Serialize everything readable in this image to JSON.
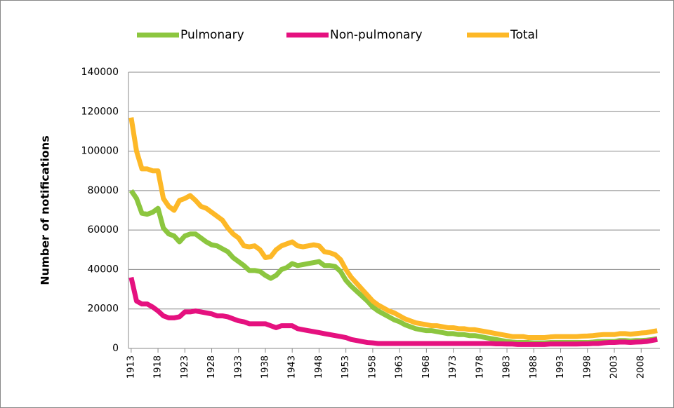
{
  "chart_data": {
    "type": "line",
    "y_label": "Number of notifications",
    "x": [
      1913,
      1914,
      1915,
      1916,
      1917,
      1918,
      1919,
      1920,
      1921,
      1922,
      1923,
      1924,
      1925,
      1926,
      1927,
      1928,
      1929,
      1930,
      1931,
      1932,
      1933,
      1934,
      1935,
      1936,
      1937,
      1938,
      1939,
      1940,
      1941,
      1942,
      1943,
      1944,
      1945,
      1946,
      1947,
      1948,
      1949,
      1950,
      1951,
      1952,
      1953,
      1954,
      1955,
      1956,
      1957,
      1958,
      1959,
      1960,
      1961,
      1962,
      1963,
      1964,
      1965,
      1966,
      1967,
      1968,
      1969,
      1970,
      1971,
      1972,
      1973,
      1974,
      1975,
      1976,
      1977,
      1978,
      1979,
      1980,
      1981,
      1982,
      1983,
      1984,
      1985,
      1986,
      1987,
      1988,
      1989,
      1990,
      1991,
      1992,
      1993,
      1994,
      1995,
      1996,
      1997,
      1998,
      1999,
      2000,
      2001,
      2002,
      2003,
      2004,
      2005,
      2006,
      2007,
      2008,
      2009,
      2010,
      2011
    ],
    "xlim": [
      1912.5,
      2011.5
    ],
    "xticks": [
      1913,
      1918,
      1923,
      1928,
      1933,
      1938,
      1943,
      1948,
      1953,
      1958,
      1963,
      1968,
      1973,
      1978,
      1983,
      1988,
      1993,
      1998,
      2003,
      2008
    ],
    "ylim": [
      0,
      140000
    ],
    "yticks": [
      0,
      20000,
      40000,
      60000,
      80000,
      100000,
      120000,
      140000
    ],
    "grid": true,
    "legend": "top",
    "series": [
      {
        "name": "Pulmonary",
        "color": "#8cc63f",
        "values": [
          80000,
          76000,
          68500,
          68000,
          69000,
          71000,
          61000,
          58000,
          57000,
          54000,
          57000,
          58000,
          58000,
          56000,
          54000,
          52500,
          52000,
          50500,
          49000,
          46000,
          44000,
          42000,
          39500,
          39500,
          39000,
          37000,
          35500,
          37000,
          40000,
          41000,
          43000,
          42000,
          42500,
          43000,
          43500,
          44000,
          42000,
          42000,
          41500,
          39000,
          34500,
          31500,
          29000,
          26500,
          24000,
          21000,
          19000,
          17500,
          16000,
          14500,
          13500,
          12000,
          11000,
          10000,
          9500,
          9000,
          9000,
          8500,
          8000,
          7500,
          7500,
          7000,
          7000,
          6500,
          6500,
          6000,
          5500,
          5000,
          4500,
          4000,
          3500,
          3200,
          3000,
          3000,
          3000,
          2800,
          2800,
          2800,
          3000,
          3000,
          3000,
          3000,
          3000,
          3000,
          3000,
          3000,
          3200,
          3500,
          3500,
          3500,
          3500,
          4000,
          4000,
          3800,
          4000,
          4000,
          4200,
          4500,
          5000
        ]
      },
      {
        "name": "Non-pulmonary",
        "color": "#e5117f",
        "values": [
          36000,
          24000,
          22500,
          22500,
          21000,
          19000,
          16500,
          15500,
          15500,
          16000,
          18500,
          18500,
          19000,
          18500,
          18000,
          17500,
          16500,
          16500,
          16000,
          15000,
          14000,
          13500,
          12500,
          12500,
          12500,
          12500,
          11500,
          10500,
          11500,
          11500,
          11500,
          10000,
          9500,
          9000,
          8500,
          8000,
          7500,
          7000,
          6500,
          6000,
          5500,
          4500,
          4000,
          3500,
          3000,
          2800,
          2500,
          2500,
          2500,
          2500,
          2500,
          2500,
          2500,
          2500,
          2500,
          2500,
          2500,
          2500,
          2500,
          2500,
          2500,
          2500,
          2500,
          2500,
          2500,
          2500,
          2500,
          2500,
          2300,
          2300,
          2200,
          2200,
          2000,
          2000,
          2000,
          2000,
          2000,
          2000,
          2200,
          2200,
          2200,
          2200,
          2200,
          2200,
          2300,
          2300,
          2500,
          2500,
          2800,
          3000,
          3000,
          3200,
          3200,
          3000,
          3200,
          3300,
          3500,
          4000,
          4500
        ]
      },
      {
        "name": "Total",
        "color": "#fdb827",
        "values": [
          117000,
          100000,
          91000,
          91000,
          90000,
          90000,
          76000,
          72000,
          70000,
          75000,
          76000,
          77500,
          75000,
          72000,
          71000,
          69000,
          67000,
          65000,
          61000,
          58000,
          56000,
          52000,
          51500,
          52000,
          50000,
          46000,
          46500,
          50000,
          52000,
          53000,
          54000,
          52000,
          51500,
          52000,
          52500,
          52000,
          49000,
          48500,
          47500,
          45000,
          40000,
          36000,
          33000,
          30000,
          27000,
          24000,
          22000,
          20500,
          19000,
          18000,
          16500,
          15000,
          14000,
          13000,
          12500,
          12000,
          11500,
          11500,
          11000,
          10500,
          10500,
          10000,
          10000,
          9500,
          9500,
          9000,
          8500,
          8000,
          7500,
          7000,
          6500,
          6000,
          6000,
          6000,
          5500,
          5500,
          5500,
          5500,
          5800,
          6000,
          6000,
          6000,
          6000,
          6000,
          6200,
          6300,
          6500,
          6800,
          7000,
          7000,
          7000,
          7500,
          7500,
          7200,
          7500,
          7800,
          8000,
          8500,
          9000
        ]
      }
    ]
  }
}
